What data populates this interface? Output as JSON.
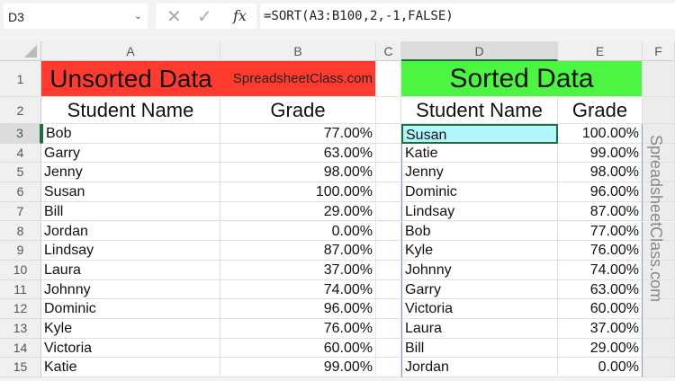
{
  "namebox": {
    "value": "D3"
  },
  "formula_bar": {
    "cancel": "✕",
    "enter": "✓",
    "fx": "fx",
    "formula": "=SORT(A3:B100,2,-1,FALSE)"
  },
  "columns": [
    "A",
    "B",
    "C",
    "D",
    "E",
    "F"
  ],
  "rows": [
    "1",
    "2",
    "3",
    "4",
    "5",
    "6",
    "7",
    "8",
    "9",
    "10",
    "11",
    "12",
    "13",
    "14",
    "15"
  ],
  "colors": {
    "unsorted_header": "#ff3b30",
    "sorted_header": "#4cf542",
    "selected_cell": "#b3f5fc"
  },
  "row1": {
    "unsorted_title": "Unsorted Data",
    "brand": "SpreadsheetClass.com",
    "sorted_title": "Sorted Data"
  },
  "row2": {
    "name_header": "Student Name",
    "grade_header": "Grade",
    "sorted_name_header": "Student Name",
    "sorted_grade_header": "Grade"
  },
  "unsorted": [
    [
      "Bob",
      "77.00%"
    ],
    [
      "Garry",
      "63.00%"
    ],
    [
      "Jenny",
      "98.00%"
    ],
    [
      "Susan",
      "100.00%"
    ],
    [
      "Bill",
      "29.00%"
    ],
    [
      "Jordan",
      "0.00%"
    ],
    [
      "Lindsay",
      "87.00%"
    ],
    [
      "Laura",
      "37.00%"
    ],
    [
      "Johnny",
      "74.00%"
    ],
    [
      "Dominic",
      "96.00%"
    ],
    [
      "Kyle",
      "76.00%"
    ],
    [
      "Victoria",
      "60.00%"
    ],
    [
      "Katie",
      "99.00%"
    ]
  ],
  "sorted": [
    [
      "Susan",
      "100.00%"
    ],
    [
      "Katie",
      "99.00%"
    ],
    [
      "Jenny",
      "98.00%"
    ],
    [
      "Dominic",
      "96.00%"
    ],
    [
      "Lindsay",
      "87.00%"
    ],
    [
      "Bob",
      "77.00%"
    ],
    [
      "Kyle",
      "76.00%"
    ],
    [
      "Johnny",
      "74.00%"
    ],
    [
      "Garry",
      "63.00%"
    ],
    [
      "Victoria",
      "60.00%"
    ],
    [
      "Laura",
      "37.00%"
    ],
    [
      "Bill",
      "29.00%"
    ],
    [
      "Jordan",
      "0.00%"
    ]
  ],
  "watermark": "SpreadsheetClass.com"
}
